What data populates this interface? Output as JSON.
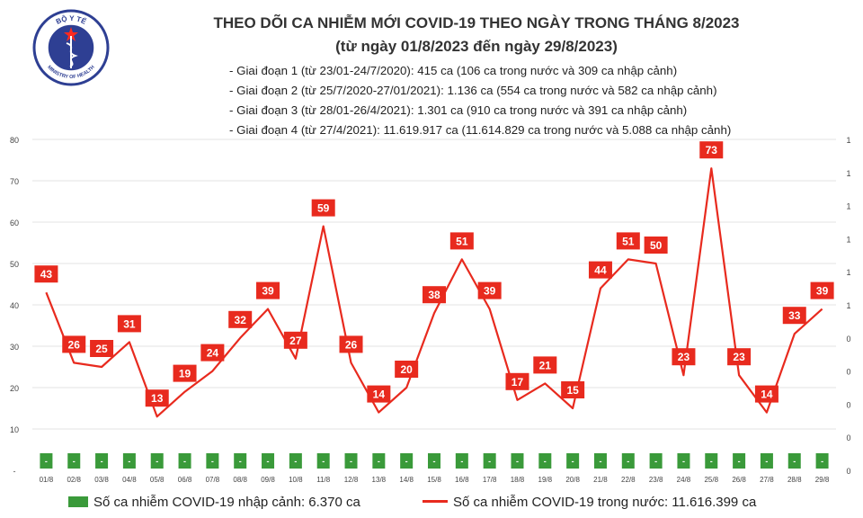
{
  "logo": {
    "top_text": "BỘ Y TẾ",
    "bottom_text": "MINISTRY OF HEALTH",
    "colors": {
      "ring": "#2e3f93",
      "star": "#ff2a1f"
    }
  },
  "header": {
    "title_line1": "THEO DÕI CA NHIỄM MỚI COVID-19 THEO NGÀY TRONG THÁNG 8/2023",
    "title_line2": "(từ ngày 01/8/2023 đến ngày 29/8/2023)",
    "phases": [
      "- Giai đoạn 1 (từ 23/01-24/7/2020): 415 ca (106 ca trong nước và 309 ca nhập cảnh)",
      "- Giai đoạn 2 (từ 25/7/2020-27/01/2021): 1.136 ca (554 ca trong nước và 582 ca nhập cảnh)",
      "- Giai đoạn 3 (từ 28/01-26/4/2021): 1.301 ca (910 ca trong nước và 391 ca nhập cảnh)",
      "- Giai đoạn 4 (từ 27/4/2021): 11.619.917 ca (11.614.829 ca trong nước và 5.088 ca nhập cảnh)"
    ]
  },
  "legend": {
    "bar_label": "Số ca nhiễm COVID-19 nhập cảnh: 6.370 ca",
    "line_label": "Số ca nhiễm COVID-19 trong nước: 11.616.399 ca"
  },
  "colors": {
    "line": "#e82a1e",
    "label_bg": "#e82a1e",
    "bar": "#3a9a3a",
    "grid": "#e3e3e3"
  },
  "chart_data": {
    "type": "line",
    "categories": [
      "01/8",
      "02/8",
      "03/8",
      "04/8",
      "05/8",
      "06/8",
      "07/8",
      "08/8",
      "09/8",
      "10/8",
      "11/8",
      "12/8",
      "13/8",
      "14/8",
      "15/8",
      "16/8",
      "17/8",
      "18/8",
      "19/8",
      "20/8",
      "21/8",
      "22/8",
      "23/8",
      "24/8",
      "25/8",
      "26/8",
      "27/8",
      "28/8",
      "29/8"
    ],
    "y_left_ticks": [
      "80",
      "70",
      "60",
      "50",
      "40",
      "30",
      "20",
      "10",
      "-"
    ],
    "y_right_ticks": [
      "1",
      "1",
      "1",
      "1",
      "1",
      "1",
      "0",
      "0",
      "0",
      "0",
      "0"
    ],
    "ylim": [
      0,
      80
    ],
    "series": [
      {
        "name": "Số ca nhiễm COVID-19 trong nước",
        "kind": "line",
        "values": [
          43,
          26,
          25,
          31,
          13,
          19,
          24,
          32,
          39,
          27,
          59,
          26,
          14,
          20,
          38,
          51,
          39,
          17,
          21,
          15,
          44,
          51,
          50,
          23,
          73,
          23,
          14,
          33,
          39
        ]
      },
      {
        "name": "Số ca nhiễm COVID-19 nhập cảnh",
        "kind": "bar",
        "values": [
          0,
          0,
          0,
          0,
          0,
          0,
          0,
          0,
          0,
          0,
          0,
          0,
          0,
          0,
          0,
          0,
          0,
          0,
          0,
          0,
          0,
          0,
          0,
          0,
          0,
          0,
          0,
          0,
          0
        ],
        "labels": [
          "-",
          "-",
          "-",
          "-",
          "-",
          "-",
          "-",
          "-",
          "-",
          "-",
          "-",
          "-",
          "-",
          "-",
          "-",
          "-",
          "-",
          "-",
          "-",
          "-",
          "-",
          "-",
          "-",
          "-",
          "-",
          "-",
          "-",
          "-",
          "-"
        ]
      }
    ],
    "grid": true,
    "legend_position": "bottom"
  }
}
